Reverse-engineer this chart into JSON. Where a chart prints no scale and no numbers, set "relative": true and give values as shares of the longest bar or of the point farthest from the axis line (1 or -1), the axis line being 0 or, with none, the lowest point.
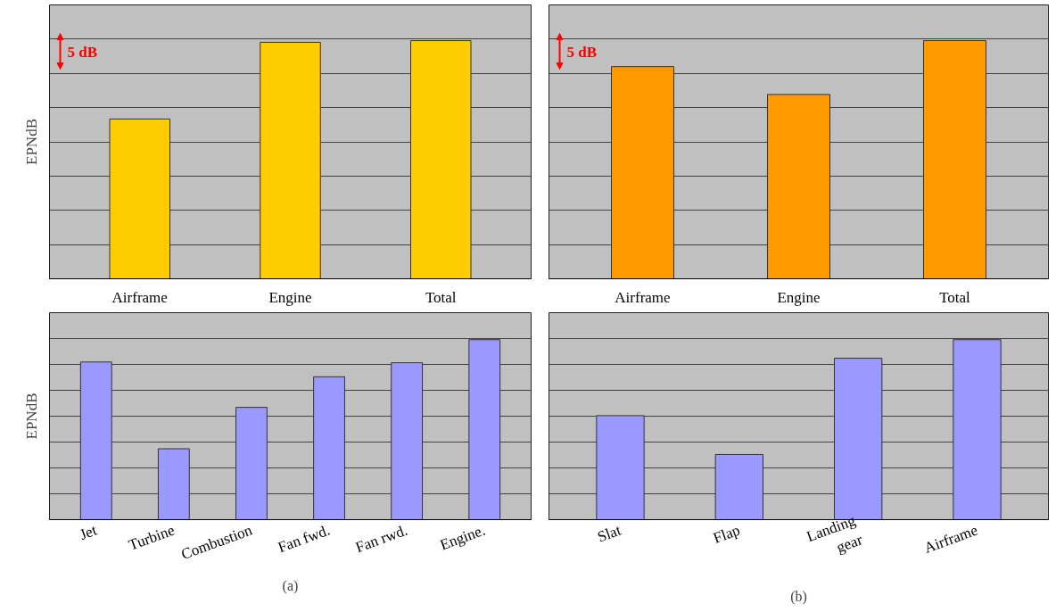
{
  "chart_data": [
    {
      "type": "bar",
      "relative": true,
      "ylabel": "EPNdB",
      "categories": [
        "Airframe",
        "Engine",
        "Total"
      ],
      "values": [
        0.671,
        0.993,
        1.0
      ],
      "color": "#ffcc00",
      "grid": "y",
      "annotations": [
        "5 dB"
      ]
    },
    {
      "type": "bar",
      "relative": true,
      "categories": [
        "Airframe",
        "Engine",
        "Total"
      ],
      "values": [
        0.891,
        0.774,
        1.0
      ],
      "color": "#ff9900",
      "grid": "y",
      "annotations": [
        "5 dB"
      ]
    },
    {
      "type": "bar",
      "relative": true,
      "ylabel": "EPNdB",
      "xlabel": "(a)",
      "categories": [
        "Jet",
        "Turbine",
        "Combustion",
        "Fan fwd.",
        "Fan rwd.",
        "Engine."
      ],
      "values": [
        0.876,
        0.394,
        0.624,
        0.794,
        0.872,
        1.0
      ],
      "color": "#9999ff",
      "grid": "y"
    },
    {
      "type": "bar",
      "relative": true,
      "xlabel": "(b)",
      "categories": [
        "Slat",
        "Flap",
        "Landing\ngear",
        "Airframe"
      ],
      "values": [
        0.578,
        0.362,
        0.897,
        1.0
      ],
      "color": "#9999ff",
      "grid": "y"
    }
  ]
}
